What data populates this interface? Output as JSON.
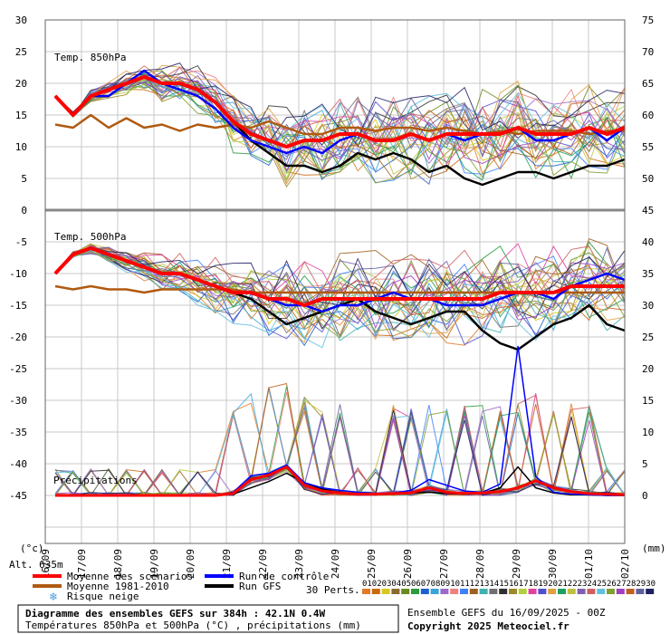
{
  "chart_data": {
    "type": "line",
    "x_dates": [
      "16/09",
      "17/09",
      "18/09",
      "19/09",
      "20/09",
      "21/09",
      "22/09",
      "23/09",
      "24/09",
      "25/09",
      "26/09",
      "27/09",
      "28/09",
      "29/09",
      "30/09",
      "01/10",
      "02/10"
    ],
    "left_axis_ticks": [
      "30",
      "25",
      "20",
      "15",
      "10",
      "5",
      "0",
      "-5",
      "-10",
      "-15",
      "-20",
      "-25",
      "-30",
      "-35",
      "-40",
      "-45"
    ],
    "right_axis_ticks": [
      "75",
      "70",
      "65",
      "60",
      "55",
      "50",
      "45",
      "40",
      "35",
      "30",
      "25",
      "20",
      "15",
      "10",
      "5",
      "0"
    ],
    "left_unit": "(°c)",
    "right_unit": "(mm)",
    "panel_t850_label": "Temp. 850hPa",
    "panel_t500_label": "Temp. 500hPa",
    "panel_precip_label": "Précipitations",
    "t850_mean": [
      18,
      15,
      18,
      19,
      20,
      21,
      20,
      20,
      19,
      17,
      14,
      12,
      11,
      10,
      11,
      11,
      12,
      12,
      11,
      11,
      12,
      11,
      12,
      12,
      12,
      12,
      13,
      12,
      12,
      12,
      13,
      12,
      13
    ],
    "t850_control": [
      18,
      15,
      18,
      18,
      20,
      22,
      20,
      19,
      18,
      16,
      13,
      11,
      10,
      9,
      10,
      9,
      11,
      12,
      11,
      11,
      12,
      11,
      12,
      11,
      12,
      12,
      13,
      11,
      11,
      12,
      13,
      11,
      13
    ],
    "t850_gfs": [
      18,
      15,
      18,
      19,
      20,
      21,
      20,
      20,
      19,
      17,
      14,
      11,
      9,
      7,
      7,
      6,
      7,
      9,
      8,
      9,
      8,
      6,
      7,
      5,
      4,
      5,
      6,
      6,
      5,
      6,
      7,
      7,
      8
    ],
    "t850_clim": [
      13.5,
      13,
      15,
      13,
      14.5,
      13,
      13.5,
      12.5,
      13.5,
      13,
      13.5,
      13,
      14,
      13,
      12,
      12,
      13,
      13,
      12.5,
      13,
      13,
      12.5,
      13,
      12.5,
      12,
      12.5,
      12,
      12.5,
      12.5,
      12.5,
      12,
      12.5,
      12.5
    ],
    "t500_mean": [
      -10,
      -7,
      -6,
      -7,
      -8,
      -9,
      -10,
      -10,
      -11,
      -12,
      -13,
      -13,
      -14,
      -14,
      -15,
      -14,
      -14,
      -14,
      -14,
      -14,
      -14,
      -14,
      -14,
      -14,
      -14,
      -13,
      -13,
      -13,
      -13,
      -12,
      -12,
      -12,
      -12
    ],
    "t500_control": [
      -10,
      -7,
      -6,
      -7,
      -8,
      -9,
      -10,
      -10,
      -11,
      -12,
      -13,
      -13,
      -14,
      -15,
      -15,
      -16,
      -15,
      -15,
      -14,
      -13,
      -14,
      -14,
      -15,
      -15,
      -15,
      -14,
      -13,
      -13,
      -14,
      -12,
      -11,
      -10,
      -11
    ],
    "t500_gfs": [
      -10,
      -7,
      -6,
      -7,
      -8,
      -9,
      -10,
      -10,
      -11,
      -12,
      -13,
      -14,
      -16,
      -18,
      -17,
      -16,
      -15,
      -14,
      -16,
      -17,
      -18,
      -17,
      -16,
      -16,
      -19,
      -21,
      -22,
      -20,
      -18,
      -17,
      -15,
      -18,
      -19
    ],
    "t500_clim": [
      -12,
      -12.5,
      -12,
      -12.5,
      -12.5,
      -13,
      -12.5,
      -12.5,
      -12.5,
      -12.5,
      -12.5,
      -13,
      -13,
      -13,
      -13,
      -13,
      -13,
      -13,
      -13,
      -13,
      -13,
      -13,
      -13,
      -13,
      -13,
      -13,
      -13,
      -13,
      -13,
      -13,
      -13,
      -13,
      -13
    ],
    "precip_mean": [
      0,
      0,
      0,
      0,
      0,
      0,
      0,
      0,
      0,
      0,
      0.3,
      2.5,
      3.2,
      4.5,
      1.6,
      0.7,
      0.4,
      0.2,
      0.2,
      0.3,
      0.4,
      1.2,
      0.5,
      0.3,
      0.4,
      0.6,
      1.2,
      2.3,
      1.2,
      0.6,
      0.3,
      0.2,
      0.1
    ],
    "precip_control": [
      0,
      0,
      0,
      0,
      0,
      0,
      0,
      0,
      0,
      0,
      0.5,
      3.1,
      3.5,
      4.8,
      2.0,
      1.2,
      0.8,
      0.5,
      0.3,
      0.4,
      0.8,
      2.5,
      1.6,
      0.7,
      0.5,
      1.8,
      23.5,
      3.0,
      0.5,
      0.2,
      0.1,
      0,
      0
    ],
    "precip_gfs": [
      0,
      0,
      0,
      0,
      0,
      0,
      0,
      0,
      0,
      0,
      0.2,
      1.2,
      2.2,
      3.5,
      2.0,
      1.0,
      0.5,
      0.2,
      0.1,
      0.3,
      0.4,
      0.5,
      0.3,
      0.2,
      0.3,
      1.2,
      4.5,
      1.2,
      0.4,
      0.1,
      0.1,
      0,
      0
    ],
    "legend": {
      "alt": "Alt. 635m",
      "mean": "Moyenne des scénarios",
      "clim": "Moyenne 1981-2010",
      "snow": "Risque neige",
      "control": "Run de contrôle",
      "gfs": "Run GFS",
      "perts": "30 Perts.",
      "pert_labels": [
        "01",
        "02",
        "03",
        "04",
        "05",
        "06",
        "07",
        "08",
        "09",
        "10",
        "11",
        "12",
        "13",
        "14",
        "15",
        "16",
        "17",
        "18",
        "19",
        "20",
        "21",
        "22",
        "23",
        "24",
        "25",
        "26",
        "27",
        "28",
        "29",
        "30"
      ],
      "pert_colors": [
        "#e07a28",
        "#c96a10",
        "#d8c81e",
        "#8a6a30",
        "#6a8a20",
        "#2b9b3b",
        "#1e5fd0",
        "#3aa3d8",
        "#9b6ac8",
        "#f08080",
        "#4080ff",
        "#a06020",
        "#40b0b0",
        "#707070",
        "#303030",
        "#9a8a2a",
        "#b0d040",
        "#e040a0",
        "#5050d0",
        "#e0a040",
        "#20a060",
        "#c0c040",
        "#8060b0",
        "#d06060",
        "#60c0e0",
        "#80a030",
        "#a040c0",
        "#c06020",
        "#6060a0",
        "#202060"
      ]
    },
    "colors": {
      "mean": "#ff0000",
      "control": "#0000ff",
      "gfs": "#000000",
      "clim": "#b05a10"
    },
    "footer": {
      "title": "Diagramme des ensembles GEFS sur 384h : 42.1N 0.4W",
      "subtitle": "Températures 850hPa et 500hPa (°C) , précipitations (mm)",
      "run": "Ensemble GEFS du 16/09/2025 - 00Z",
      "copyright": "Copyright 2025 Meteociel.fr"
    }
  }
}
